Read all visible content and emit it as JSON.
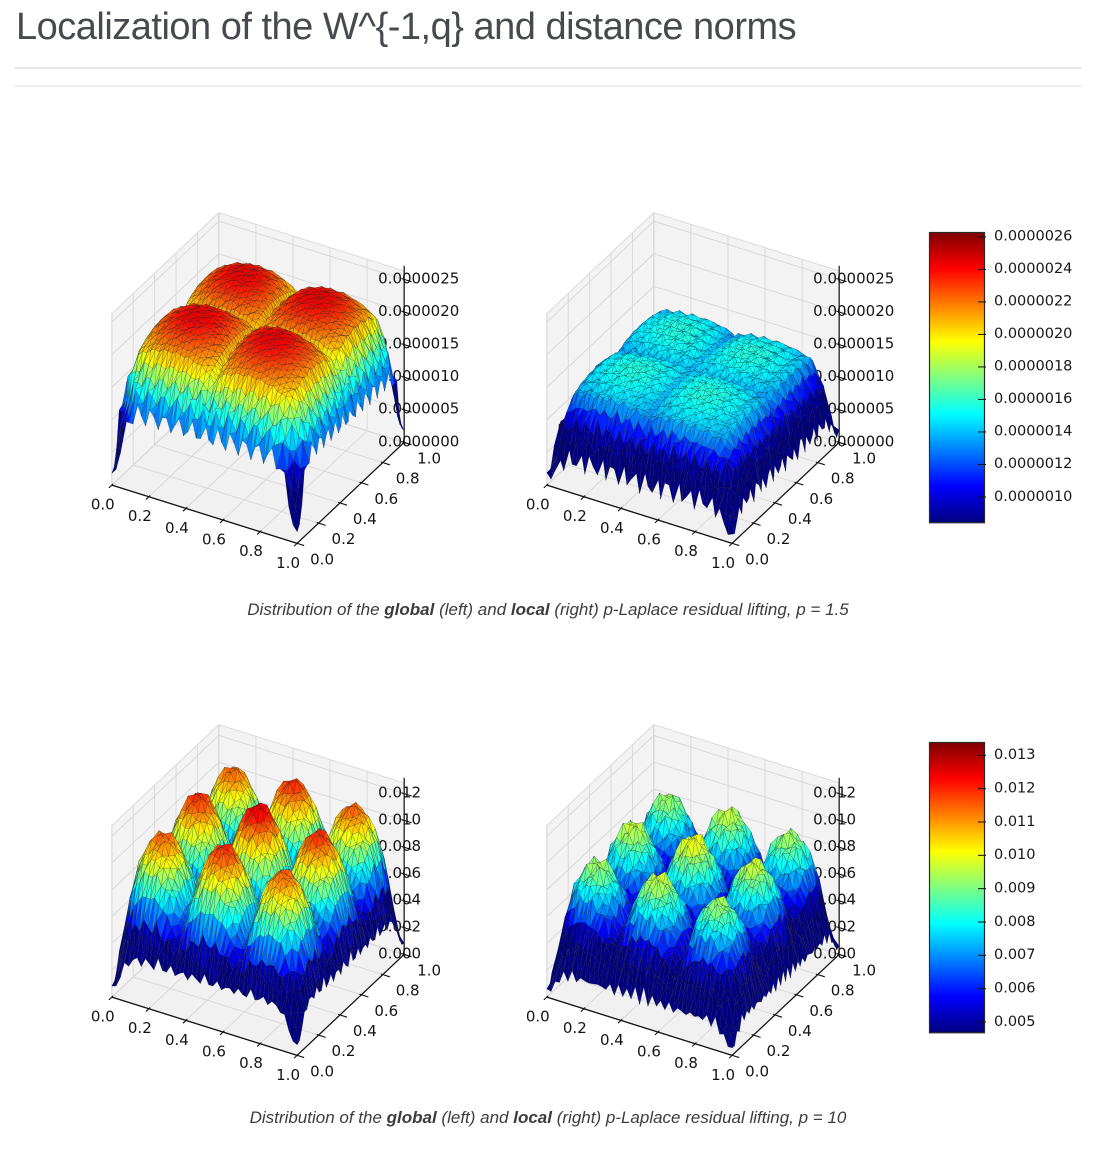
{
  "page": {
    "title": "Localization of the W^{-1,q} and distance norms"
  },
  "figures": [
    {
      "caption_parts": [
        {
          "text": "Distribution of the ",
          "bold": false
        },
        {
          "text": "global",
          "bold": true
        },
        {
          "text": " (left) and ",
          "bold": false
        },
        {
          "text": "local",
          "bold": true
        },
        {
          "text": " (right) p-Laplace residual lifting, p = 1.5",
          "bold": false
        }
      ],
      "colorbar": {
        "colormap": "jet",
        "labels": [
          "0.0000026",
          "0.0000024",
          "0.0000022",
          "0.0000020",
          "0.0000018",
          "0.0000016",
          "0.0000014",
          "0.0000012",
          "0.0000010"
        ],
        "values": [
          2.6e-06,
          2.4e-06,
          2.2e-06,
          2e-06,
          1.8e-06,
          1.6e-06,
          1.4e-06,
          1.2e-06,
          1e-06
        ],
        "bar_range": [
          8.4e-07,
          2.63e-06
        ]
      }
    },
    {
      "caption_parts": [
        {
          "text": "Distribution of the ",
          "bold": false
        },
        {
          "text": "global",
          "bold": true
        },
        {
          "text": " (left) and ",
          "bold": false
        },
        {
          "text": "local",
          "bold": true
        },
        {
          "text": " (right) p-Laplace residual lifting, p = 10",
          "bold": false
        }
      ],
      "colorbar": {
        "colormap": "jet",
        "labels": [
          "0.013",
          "0.012",
          "0.011",
          "0.010",
          "0.009",
          "0.008",
          "0.007",
          "0.006",
          "0.005"
        ],
        "values": [
          0.013,
          0.012,
          0.011,
          0.01,
          0.009,
          0.008,
          0.007,
          0.006,
          0.005
        ],
        "bar_range": [
          0.00467,
          0.0134
        ]
      }
    }
  ],
  "chart_data": [
    {
      "type": "surface",
      "name": "global p-Laplace residual lifting, p = 1.5",
      "x_ticks": [
        "0.0",
        "0.2",
        "0.4",
        "0.6",
        "0.8",
        "1.0"
      ],
      "y_ticks": [
        "0.0",
        "0.2",
        "0.4",
        "0.6",
        "0.8",
        "1.0"
      ],
      "z_tick_labels": [
        "0.0000000",
        "0.0000005",
        "0.0000010",
        "0.0000015",
        "0.0000020",
        "0.0000025"
      ],
      "z_tick_values": [
        0,
        5e-07,
        1e-06,
        1.5e-06,
        2e-06,
        2.5e-06
      ],
      "z_axis_max": 2.63e-06,
      "color_range": [
        8.4e-07,
        2.63e-06
      ],
      "colormap": "jet",
      "grid_n": 44,
      "surface_model": {
        "amp": 2.55e-06,
        "edge_pow": 0.1,
        "s_floor": 0.12,
        "k": 2,
        "base": 0.8,
        "bump_pow": 0.5,
        "notch_width": 0.09,
        "notch_depth": 0.35,
        "notch_freq": 14,
        "jitter": 0.018,
        "corner_dip": 0.88
      }
    },
    {
      "type": "surface",
      "name": "local p-Laplace residual lifting, p = 1.5",
      "x_ticks": [
        "0.0",
        "0.2",
        "0.4",
        "0.6",
        "0.8",
        "1.0"
      ],
      "y_ticks": [
        "0.0",
        "0.2",
        "0.4",
        "0.6",
        "0.8",
        "1.0"
      ],
      "z_tick_labels": [
        "0.0000000",
        "0.0000005",
        "0.0000010",
        "0.0000015",
        "0.0000020",
        "0.0000025"
      ],
      "z_tick_values": [
        0,
        5e-07,
        1e-06,
        1.5e-06,
        2e-06,
        2.5e-06
      ],
      "z_axis_max": 2.63e-06,
      "color_range": [
        8.4e-07,
        2.63e-06
      ],
      "colormap": "jet",
      "grid_n": 44,
      "surface_model": {
        "amp": 1.62e-06,
        "edge_pow": 0.08,
        "s_floor": 0.12,
        "k": 2,
        "base": 0.86,
        "bump_pow": 0.5,
        "notch_width": 0.085,
        "notch_depth": 0.72,
        "notch_freq": 17,
        "jitter": 0.05,
        "corner_dip": 0.8
      }
    },
    {
      "type": "surface",
      "name": "global p-Laplace residual lifting, p = 10",
      "x_ticks": [
        "0.0",
        "0.2",
        "0.4",
        "0.6",
        "0.8",
        "1.0"
      ],
      "y_ticks": [
        "0.0",
        "0.2",
        "0.4",
        "0.6",
        "0.8",
        "1.0"
      ],
      "z_tick_labels": [
        "0.000",
        "0.002",
        "0.004",
        "0.006",
        "0.008",
        "0.010",
        "0.012"
      ],
      "z_tick_values": [
        0,
        0.002,
        0.004,
        0.006,
        0.008,
        0.01,
        0.012
      ],
      "z_axis_max": 0.0128,
      "color_range": [
        0.00467,
        0.0134
      ],
      "colormap": "jet",
      "grid_n": 44,
      "surface_model": {
        "amp": 0.0126,
        "edge_pow": 0.08,
        "s_floor": 0.1,
        "k": 3,
        "base": 0.42,
        "bump_pow": 0.6,
        "notch_width": 0.06,
        "notch_depth": 0.32,
        "notch_freq": 16,
        "jitter": 0.035,
        "corner_dip": 0.8
      }
    },
    {
      "type": "surface",
      "name": "local p-Laplace residual lifting, p = 10",
      "x_ticks": [
        "0.0",
        "0.2",
        "0.4",
        "0.6",
        "0.8",
        "1.0"
      ],
      "y_ticks": [
        "0.0",
        "0.2",
        "0.4",
        "0.6",
        "0.8",
        "1.0"
      ],
      "z_tick_labels": [
        "0.000",
        "0.002",
        "0.004",
        "0.006",
        "0.008",
        "0.010",
        "0.012"
      ],
      "z_tick_values": [
        0,
        0.002,
        0.004,
        0.006,
        0.008,
        0.01,
        0.012
      ],
      "z_axis_max": 0.0128,
      "color_range": [
        0.00467,
        0.0134
      ],
      "colormap": "jet",
      "grid_n": 44,
      "surface_model": {
        "amp": 0.0101,
        "edge_pow": 0.07,
        "s_floor": 0.1,
        "k": 3,
        "base": 0.4,
        "bump_pow": 0.65,
        "notch_width": 0.06,
        "notch_depth": 0.5,
        "notch_freq": 21,
        "jitter": 0.07,
        "corner_dip": 0.8
      }
    }
  ]
}
